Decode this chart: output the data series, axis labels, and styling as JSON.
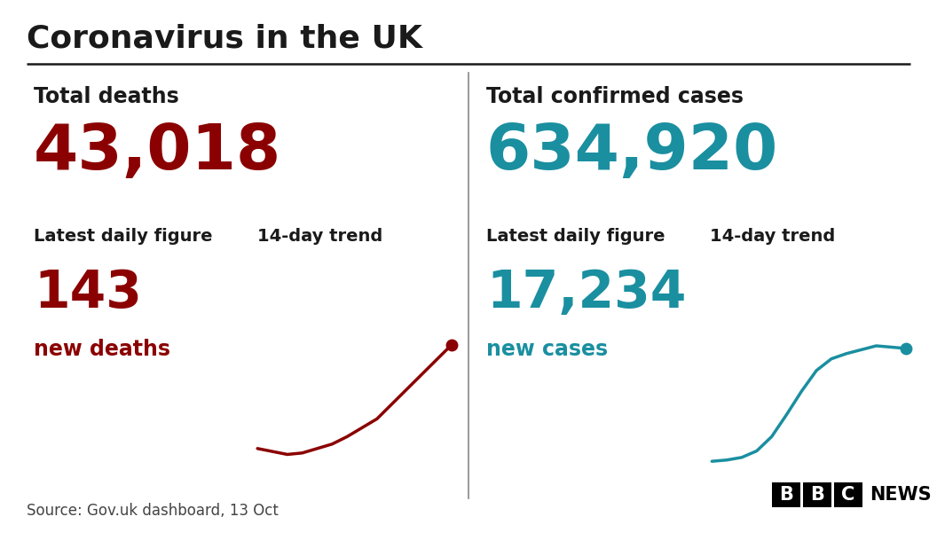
{
  "title": "Coronavirus in the UK",
  "bg_color": "#ffffff",
  "title_color": "#1a1a1a",
  "title_fontsize": 26,
  "divider_color": "#1a1a1a",
  "left_panel": {
    "label": "Total deaths",
    "total_value": "43,018",
    "total_color": "#8b0000",
    "daily_label": "Latest daily figure",
    "trend_label": "14-day trend",
    "daily_value": "143",
    "daily_sub": "new deaths",
    "daily_color": "#8b0000",
    "label_color": "#1a1a1a",
    "trend_color": "#8b0000",
    "trend_x": [
      0,
      1,
      2,
      3,
      4,
      5,
      6,
      7,
      8,
      9,
      10,
      11,
      12,
      13
    ],
    "trend_y": [
      0.3,
      0.28,
      0.26,
      0.27,
      0.3,
      0.33,
      0.38,
      0.44,
      0.5,
      0.6,
      0.7,
      0.8,
      0.9,
      1.0
    ]
  },
  "right_panel": {
    "label": "Total confirmed cases",
    "total_value": "634,920",
    "total_color": "#1a8fa0",
    "daily_label": "Latest daily figure",
    "trend_label": "14-day trend",
    "daily_value": "17,234",
    "daily_sub": "new cases",
    "daily_color": "#1a8fa0",
    "label_color": "#1a1a1a",
    "trend_color": "#1a8fa0",
    "trend_x": [
      0,
      1,
      2,
      3,
      4,
      5,
      6,
      7,
      8,
      9,
      10,
      11,
      12,
      13
    ],
    "trend_y": [
      0.08,
      0.09,
      0.11,
      0.16,
      0.27,
      0.44,
      0.62,
      0.78,
      0.87,
      0.91,
      0.94,
      0.97,
      0.96,
      0.95
    ]
  },
  "source_text": "Source: Gov.uk dashboard, 13 Oct",
  "bbc_text": "BBC NEWS",
  "source_color": "#444444",
  "footer_fontsize": 12,
  "label_fontsize": 17,
  "total_fontsize": 52,
  "sublabel_fontsize": 14,
  "daily_fontsize": 42,
  "sub_fontsize": 17
}
